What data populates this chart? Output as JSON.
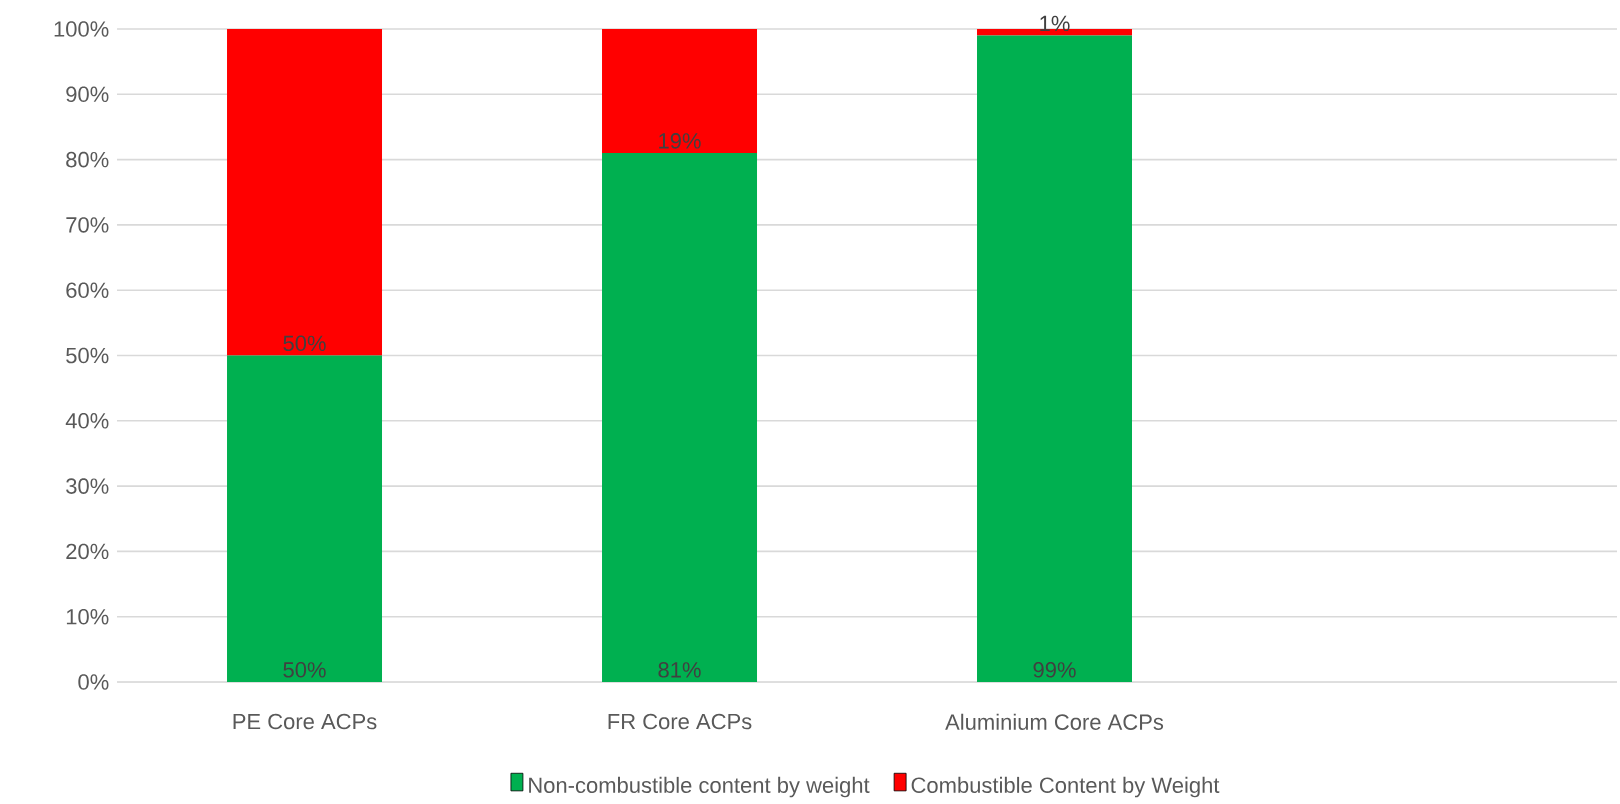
{
  "chart_data": {
    "type": "bar",
    "stacked": true,
    "categories": [
      "PE Core ACPs",
      "FR Core ACPs",
      "Aluminium Core ACPs",
      null
    ],
    "series": [
      {
        "name": "Non-combustible content by weight",
        "color": "#00b050",
        "values": [
          50,
          81,
          99,
          null
        ],
        "value_labels": [
          "50%",
          "81%",
          "99%",
          null
        ]
      },
      {
        "name": "Combustible Content by Weight",
        "color": "#ff0000",
        "values": [
          50,
          19,
          1,
          null
        ],
        "value_labels": [
          "50%",
          "19%",
          "1%",
          null
        ]
      }
    ],
    "ylim": [
      0,
      100
    ],
    "yticks": [
      {
        "value": 0,
        "label": "0%"
      },
      {
        "value": 10,
        "label": "10%"
      },
      {
        "value": 20,
        "label": "20%"
      },
      {
        "value": 30,
        "label": "30%"
      },
      {
        "value": 40,
        "label": "40%"
      },
      {
        "value": 50,
        "label": "50%"
      },
      {
        "value": 60,
        "label": "60%"
      },
      {
        "value": 70,
        "label": "70%"
      },
      {
        "value": 80,
        "label": "80%"
      },
      {
        "value": 90,
        "label": "90%"
      },
      {
        "value": 100,
        "label": "100%"
      }
    ],
    "grid": "y",
    "legend": "bottom"
  }
}
